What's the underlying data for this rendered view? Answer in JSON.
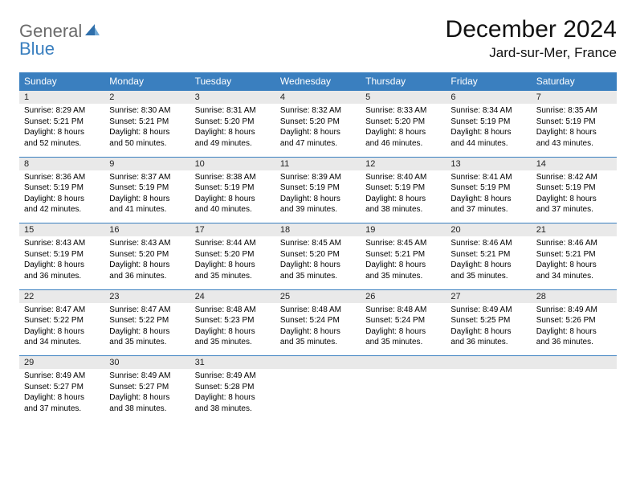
{
  "logo": {
    "general": "General",
    "blue": "Blue"
  },
  "title": "December 2024",
  "location": "Jard-sur-Mer, France",
  "colors": {
    "header_bg": "#3a7fbf",
    "header_text": "#ffffff",
    "daynum_bg": "#e9e9e9",
    "row_divider": "#3a7fbf",
    "logo_gray": "#6a6a6a",
    "logo_blue": "#3a7fbf"
  },
  "weekdays": [
    "Sunday",
    "Monday",
    "Tuesday",
    "Wednesday",
    "Thursday",
    "Friday",
    "Saturday"
  ],
  "weeks": [
    {
      "nums": [
        "1",
        "2",
        "3",
        "4",
        "5",
        "6",
        "7"
      ],
      "cells": [
        {
          "sunrise": "Sunrise: 8:29 AM",
          "sunset": "Sunset: 5:21 PM",
          "d1": "Daylight: 8 hours",
          "d2": "and 52 minutes."
        },
        {
          "sunrise": "Sunrise: 8:30 AM",
          "sunset": "Sunset: 5:21 PM",
          "d1": "Daylight: 8 hours",
          "d2": "and 50 minutes."
        },
        {
          "sunrise": "Sunrise: 8:31 AM",
          "sunset": "Sunset: 5:20 PM",
          "d1": "Daylight: 8 hours",
          "d2": "and 49 minutes."
        },
        {
          "sunrise": "Sunrise: 8:32 AM",
          "sunset": "Sunset: 5:20 PM",
          "d1": "Daylight: 8 hours",
          "d2": "and 47 minutes."
        },
        {
          "sunrise": "Sunrise: 8:33 AM",
          "sunset": "Sunset: 5:20 PM",
          "d1": "Daylight: 8 hours",
          "d2": "and 46 minutes."
        },
        {
          "sunrise": "Sunrise: 8:34 AM",
          "sunset": "Sunset: 5:19 PM",
          "d1": "Daylight: 8 hours",
          "d2": "and 44 minutes."
        },
        {
          "sunrise": "Sunrise: 8:35 AM",
          "sunset": "Sunset: 5:19 PM",
          "d1": "Daylight: 8 hours",
          "d2": "and 43 minutes."
        }
      ]
    },
    {
      "nums": [
        "8",
        "9",
        "10",
        "11",
        "12",
        "13",
        "14"
      ],
      "cells": [
        {
          "sunrise": "Sunrise: 8:36 AM",
          "sunset": "Sunset: 5:19 PM",
          "d1": "Daylight: 8 hours",
          "d2": "and 42 minutes."
        },
        {
          "sunrise": "Sunrise: 8:37 AM",
          "sunset": "Sunset: 5:19 PM",
          "d1": "Daylight: 8 hours",
          "d2": "and 41 minutes."
        },
        {
          "sunrise": "Sunrise: 8:38 AM",
          "sunset": "Sunset: 5:19 PM",
          "d1": "Daylight: 8 hours",
          "d2": "and 40 minutes."
        },
        {
          "sunrise": "Sunrise: 8:39 AM",
          "sunset": "Sunset: 5:19 PM",
          "d1": "Daylight: 8 hours",
          "d2": "and 39 minutes."
        },
        {
          "sunrise": "Sunrise: 8:40 AM",
          "sunset": "Sunset: 5:19 PM",
          "d1": "Daylight: 8 hours",
          "d2": "and 38 minutes."
        },
        {
          "sunrise": "Sunrise: 8:41 AM",
          "sunset": "Sunset: 5:19 PM",
          "d1": "Daylight: 8 hours",
          "d2": "and 37 minutes."
        },
        {
          "sunrise": "Sunrise: 8:42 AM",
          "sunset": "Sunset: 5:19 PM",
          "d1": "Daylight: 8 hours",
          "d2": "and 37 minutes."
        }
      ]
    },
    {
      "nums": [
        "15",
        "16",
        "17",
        "18",
        "19",
        "20",
        "21"
      ],
      "cells": [
        {
          "sunrise": "Sunrise: 8:43 AM",
          "sunset": "Sunset: 5:19 PM",
          "d1": "Daylight: 8 hours",
          "d2": "and 36 minutes."
        },
        {
          "sunrise": "Sunrise: 8:43 AM",
          "sunset": "Sunset: 5:20 PM",
          "d1": "Daylight: 8 hours",
          "d2": "and 36 minutes."
        },
        {
          "sunrise": "Sunrise: 8:44 AM",
          "sunset": "Sunset: 5:20 PM",
          "d1": "Daylight: 8 hours",
          "d2": "and 35 minutes."
        },
        {
          "sunrise": "Sunrise: 8:45 AM",
          "sunset": "Sunset: 5:20 PM",
          "d1": "Daylight: 8 hours",
          "d2": "and 35 minutes."
        },
        {
          "sunrise": "Sunrise: 8:45 AM",
          "sunset": "Sunset: 5:21 PM",
          "d1": "Daylight: 8 hours",
          "d2": "and 35 minutes."
        },
        {
          "sunrise": "Sunrise: 8:46 AM",
          "sunset": "Sunset: 5:21 PM",
          "d1": "Daylight: 8 hours",
          "d2": "and 35 minutes."
        },
        {
          "sunrise": "Sunrise: 8:46 AM",
          "sunset": "Sunset: 5:21 PM",
          "d1": "Daylight: 8 hours",
          "d2": "and 34 minutes."
        }
      ]
    },
    {
      "nums": [
        "22",
        "23",
        "24",
        "25",
        "26",
        "27",
        "28"
      ],
      "cells": [
        {
          "sunrise": "Sunrise: 8:47 AM",
          "sunset": "Sunset: 5:22 PM",
          "d1": "Daylight: 8 hours",
          "d2": "and 34 minutes."
        },
        {
          "sunrise": "Sunrise: 8:47 AM",
          "sunset": "Sunset: 5:22 PM",
          "d1": "Daylight: 8 hours",
          "d2": "and 35 minutes."
        },
        {
          "sunrise": "Sunrise: 8:48 AM",
          "sunset": "Sunset: 5:23 PM",
          "d1": "Daylight: 8 hours",
          "d2": "and 35 minutes."
        },
        {
          "sunrise": "Sunrise: 8:48 AM",
          "sunset": "Sunset: 5:24 PM",
          "d1": "Daylight: 8 hours",
          "d2": "and 35 minutes."
        },
        {
          "sunrise": "Sunrise: 8:48 AM",
          "sunset": "Sunset: 5:24 PM",
          "d1": "Daylight: 8 hours",
          "d2": "and 35 minutes."
        },
        {
          "sunrise": "Sunrise: 8:49 AM",
          "sunset": "Sunset: 5:25 PM",
          "d1": "Daylight: 8 hours",
          "d2": "and 36 minutes."
        },
        {
          "sunrise": "Sunrise: 8:49 AM",
          "sunset": "Sunset: 5:26 PM",
          "d1": "Daylight: 8 hours",
          "d2": "and 36 minutes."
        }
      ]
    },
    {
      "nums": [
        "29",
        "30",
        "31",
        "",
        "",
        "",
        ""
      ],
      "cells": [
        {
          "sunrise": "Sunrise: 8:49 AM",
          "sunset": "Sunset: 5:27 PM",
          "d1": "Daylight: 8 hours",
          "d2": "and 37 minutes."
        },
        {
          "sunrise": "Sunrise: 8:49 AM",
          "sunset": "Sunset: 5:27 PM",
          "d1": "Daylight: 8 hours",
          "d2": "and 38 minutes."
        },
        {
          "sunrise": "Sunrise: 8:49 AM",
          "sunset": "Sunset: 5:28 PM",
          "d1": "Daylight: 8 hours",
          "d2": "and 38 minutes."
        },
        null,
        null,
        null,
        null
      ]
    }
  ]
}
